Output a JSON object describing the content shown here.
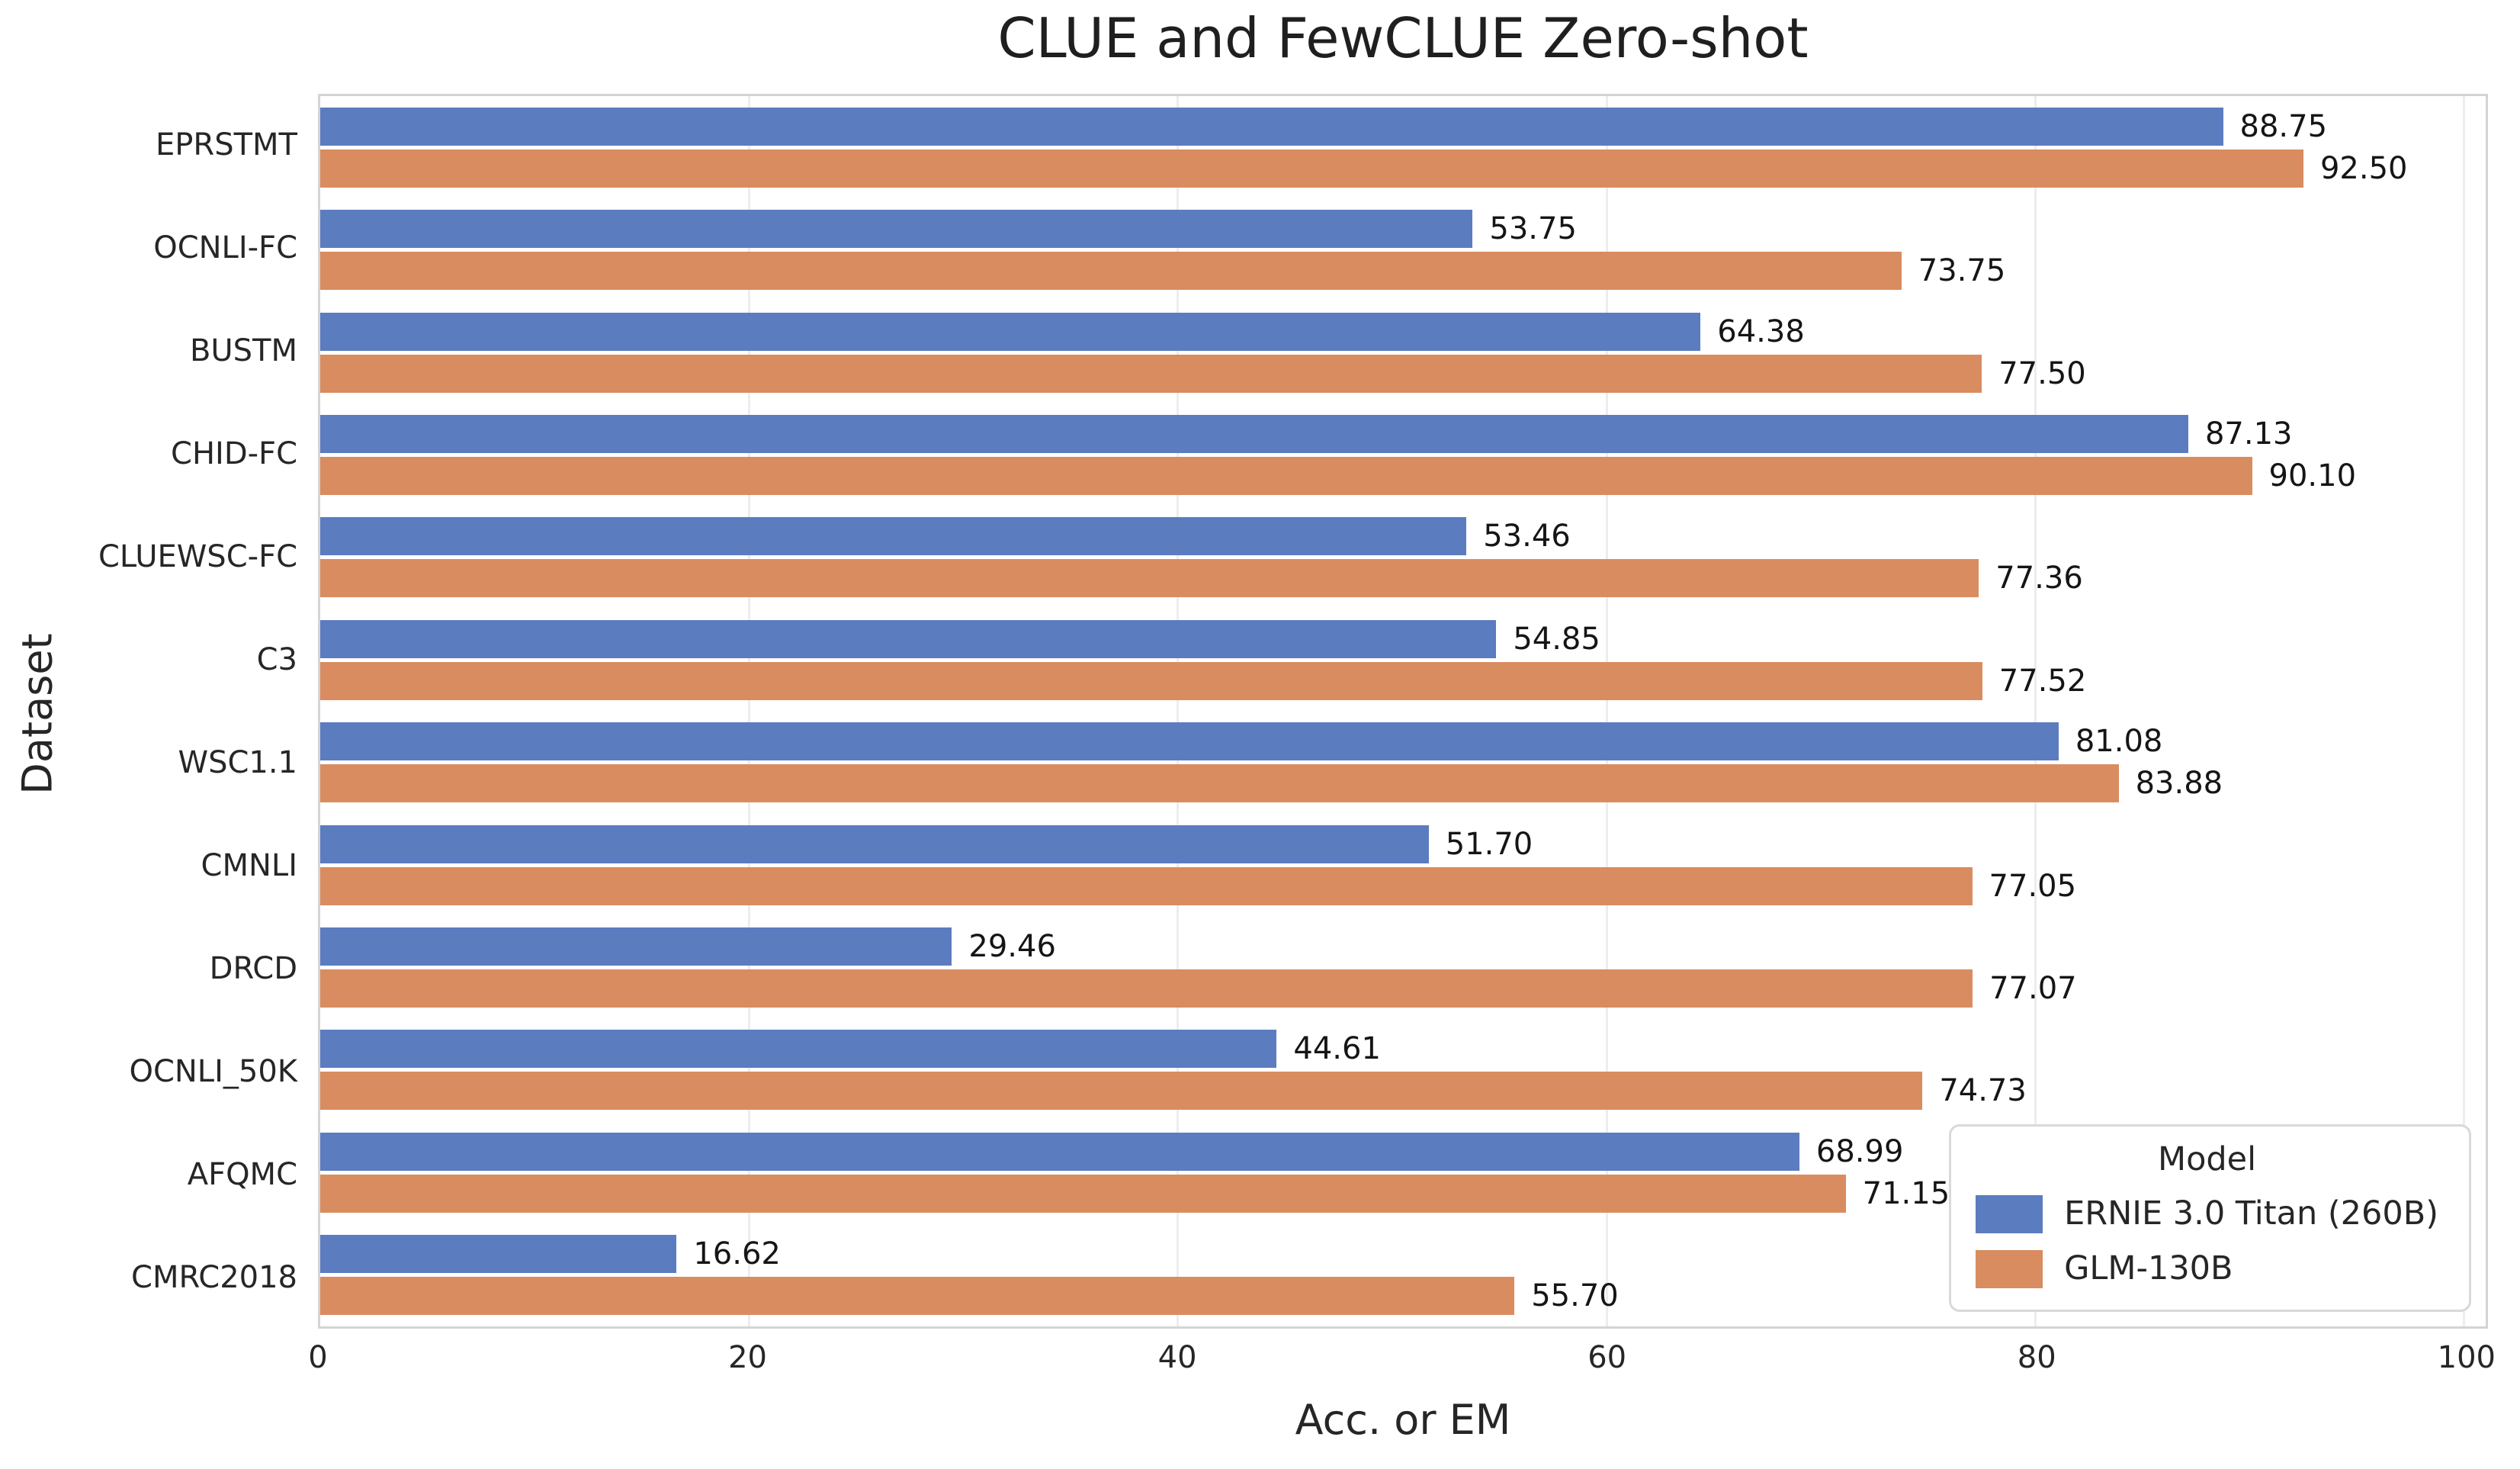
{
  "title": "CLUE and FewCLUE Zero-shot",
  "axes": {
    "x_label": "Acc. or EM",
    "y_label": "Dataset"
  },
  "legend": {
    "title": "Model"
  },
  "colors": {
    "series_blue": "#5c7cc0",
    "series_orange": "#d98c5f",
    "grid": "#ededed",
    "spine": "#d4d4d4",
    "legend_border": "#d9d9d9",
    "text": "#262626",
    "value_text": "#151515"
  },
  "chart_data": {
    "type": "bar",
    "orientation": "horizontal",
    "title": "CLUE and FewCLUE Zero-shot",
    "xlabel": "Acc. or EM",
    "ylabel": "Dataset",
    "xlim": [
      0,
      101
    ],
    "x_ticks": [
      0,
      20,
      40,
      60,
      80,
      100
    ],
    "grid": true,
    "legend_title": "Model",
    "legend_position": "lower right",
    "categories": [
      "EPRSTMT",
      "OCNLI-FC",
      "BUSTM",
      "CHID-FC",
      "CLUEWSC-FC",
      "C3",
      "WSC1.1",
      "CMNLI",
      "DRCD",
      "OCNLI_50K",
      "AFQMC",
      "CMRC2018"
    ],
    "series": [
      {
        "name": "ERNIE 3.0 Titan (260B)",
        "color": "#5c7cc0",
        "values": [
          88.75,
          53.75,
          64.38,
          87.13,
          53.46,
          54.85,
          81.08,
          51.7,
          29.46,
          44.61,
          68.99,
          16.62
        ]
      },
      {
        "name": "GLM-130B",
        "color": "#d98c5f",
        "values": [
          92.5,
          73.75,
          77.5,
          90.1,
          77.36,
          77.52,
          83.88,
          77.05,
          77.07,
          74.73,
          71.15,
          55.7
        ]
      }
    ],
    "value_label_decimals": 2
  }
}
